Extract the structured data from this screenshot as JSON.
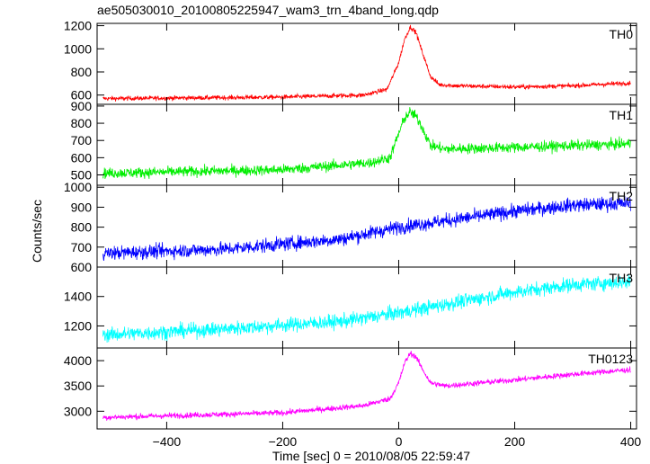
{
  "chart_data": {
    "type": "line",
    "title": "ae505030010_20100805225947_wam3_trn_4band_long.qdp",
    "xlabel": "Time [sec] 0 = 2010/08/05 22:59:47",
    "ylabel": "Counts/sec",
    "xlim": [
      -520,
      410
    ],
    "xticks": [
      -400,
      -200,
      0,
      200,
      400
    ],
    "xtick_labels": [
      "−400",
      "−200",
      "0",
      "200",
      "400"
    ],
    "panels": [
      {
        "name": "TH0",
        "color": "#ff0000",
        "ylim": [
          520,
          1220
        ],
        "yticks": [
          600,
          800,
          1000,
          1200
        ],
        "trend": [
          [
            -500,
            570
          ],
          [
            -200,
            582
          ],
          [
            -60,
            600
          ],
          [
            -20,
            650
          ],
          [
            0,
            880
          ],
          [
            10,
            1080
          ],
          [
            20,
            1190
          ],
          [
            30,
            1140
          ],
          [
            40,
            980
          ],
          [
            55,
            760
          ],
          [
            70,
            690
          ],
          [
            100,
            680
          ],
          [
            200,
            670
          ],
          [
            300,
            680
          ],
          [
            400,
            705
          ]
        ],
        "noise": 14
      },
      {
        "name": "TH1",
        "color": "#00ee00",
        "ylim": [
          440,
          910
        ],
        "yticks": [
          500,
          600,
          700,
          800,
          900
        ],
        "trend": [
          [
            -500,
            510
          ],
          [
            -200,
            530
          ],
          [
            -50,
            570
          ],
          [
            -15,
            600
          ],
          [
            0,
            740
          ],
          [
            10,
            830
          ],
          [
            20,
            865
          ],
          [
            30,
            840
          ],
          [
            40,
            780
          ],
          [
            55,
            670
          ],
          [
            80,
            650
          ],
          [
            200,
            660
          ],
          [
            300,
            670
          ],
          [
            400,
            680
          ]
        ],
        "noise": 22
      },
      {
        "name": "TH2",
        "color": "#0000ff",
        "ylim": [
          600,
          1010
        ],
        "yticks": [
          600,
          700,
          800,
          900,
          1000
        ],
        "trend": [
          [
            -500,
            670
          ],
          [
            -300,
            690
          ],
          [
            -100,
            740
          ],
          [
            0,
            800
          ],
          [
            100,
            840
          ],
          [
            200,
            880
          ],
          [
            300,
            910
          ],
          [
            400,
            920
          ]
        ],
        "noise": 25
      },
      {
        "name": "TH3",
        "color": "#00ffff",
        "ylim": [
          1050,
          1600
        ],
        "yticks": [
          1200,
          1400
        ],
        "trend": [
          [
            -500,
            1140
          ],
          [
            -300,
            1180
          ],
          [
            -100,
            1230
          ],
          [
            0,
            1290
          ],
          [
            100,
            1360
          ],
          [
            200,
            1430
          ],
          [
            300,
            1480
          ],
          [
            400,
            1500
          ]
        ],
        "noise": 35
      },
      {
        "name": "TH0123",
        "color": "#ff00ff",
        "ylim": [
          2650,
          4250
        ],
        "yticks": [
          3000,
          3500,
          4000
        ],
        "trend": [
          [
            -500,
            2880
          ],
          [
            -200,
            2970
          ],
          [
            -60,
            3110
          ],
          [
            -15,
            3250
          ],
          [
            0,
            3560
          ],
          [
            10,
            3950
          ],
          [
            20,
            4150
          ],
          [
            30,
            4070
          ],
          [
            40,
            3850
          ],
          [
            55,
            3560
          ],
          [
            80,
            3500
          ],
          [
            200,
            3620
          ],
          [
            300,
            3730
          ],
          [
            400,
            3820
          ]
        ],
        "noise": 40
      }
    ]
  }
}
